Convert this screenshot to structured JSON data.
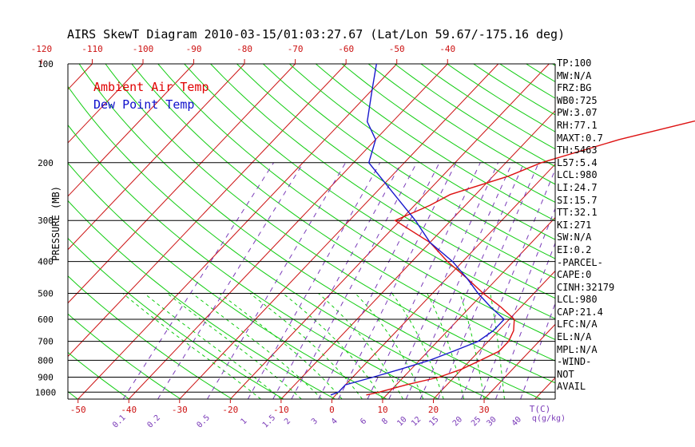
{
  "title": "AIRS SkewT Diagram 2010-03-15/01:03:27.67 (Lat/Lon 59.67/-175.16 deg)",
  "legend": {
    "ambient": "Ambient Air Temp",
    "dewpoint": "Dew Point Temp"
  },
  "colors": {
    "ambient": "#dd1111",
    "dewpoint": "#1818cc",
    "dry_adiabat": "#11cc11",
    "isotherm": "#cc1111",
    "mixing_ratio": "#7a3ab8",
    "moist_adiabat": "#11cc11"
  },
  "chart_data": {
    "type": "line",
    "ylabel": "PRESSURE (MB)",
    "y_scale": "log",
    "ylim": [
      1050,
      100
    ],
    "xlim_bottom": [
      -52,
      44
    ],
    "pressure_levels": [
      100,
      200,
      300,
      400,
      500,
      600,
      700,
      800,
      900,
      1000
    ],
    "top_temp_ticks": [
      "-120",
      "-110",
      "-100",
      "-90",
      "-80",
      "-70",
      "-60",
      "-50",
      "-40"
    ],
    "bottom_temp_ticks": [
      "-50",
      "-40",
      "-30",
      "-20",
      "-10",
      "0",
      "10",
      "20",
      "30"
    ],
    "bottom_temp_label": "T(C)",
    "mixing_ratio_ticks": [
      "0.1",
      "0.2",
      "0.5",
      "1",
      "1.5",
      "2",
      "3",
      "4",
      "6",
      "8",
      "10",
      "12",
      "15",
      "20",
      "25",
      "30",
      "40"
    ],
    "mixing_ratio_label": "q(g/kg)",
    "series": [
      {
        "name": "Ambient Air Temp",
        "points": [
          [
            1020,
            6
          ],
          [
            1000,
            8
          ],
          [
            950,
            12
          ],
          [
            900,
            17
          ],
          [
            850,
            20
          ],
          [
            800,
            22
          ],
          [
            750,
            24
          ],
          [
            700,
            24
          ],
          [
            650,
            23
          ],
          [
            600,
            21
          ],
          [
            550,
            16
          ],
          [
            500,
            10
          ],
          [
            450,
            4
          ],
          [
            400,
            -3
          ],
          [
            350,
            -10
          ],
          [
            300,
            -21
          ],
          [
            270,
            -17
          ],
          [
            250,
            -15
          ],
          [
            220,
            -7
          ],
          [
            200,
            -3
          ],
          [
            170,
            8
          ],
          [
            150,
            19
          ],
          [
            130,
            33
          ],
          [
            110,
            43
          ],
          [
            100,
            50
          ]
        ]
      },
      {
        "name": "Dew Point Temp",
        "points": [
          [
            1020,
            -1
          ],
          [
            1000,
            0
          ],
          [
            950,
            0
          ],
          [
            900,
            4
          ],
          [
            850,
            8
          ],
          [
            800,
            12
          ],
          [
            750,
            15
          ],
          [
            700,
            18
          ],
          [
            650,
            19
          ],
          [
            600,
            19
          ],
          [
            550,
            14
          ],
          [
            500,
            9
          ],
          [
            450,
            4
          ],
          [
            400,
            -2
          ],
          [
            350,
            -10
          ],
          [
            300,
            -17
          ],
          [
            250,
            -26
          ],
          [
            200,
            -37
          ],
          [
            170,
            -40
          ],
          [
            150,
            -45
          ],
          [
            120,
            -50
          ],
          [
            100,
            -54
          ]
        ]
      }
    ]
  },
  "indices": [
    "TP:100",
    "MW:N/A",
    "FRZ:BG",
    "WB0:725",
    "PW:3.07",
    "RH:77.1",
    "MAXT:0.7",
    "TH:5463",
    "L57:5.4",
    "LCL:980",
    "LI:24.7",
    "SI:15.7",
    "TT:32.1",
    "KI:271",
    "SW:N/A",
    "EI:0.2",
    "-PARCEL-",
    "CAPE:0",
    "CINH:32179",
    "LCL:980",
    "CAP:21.4",
    "LFC:N/A",
    "EL:N/A",
    "MPL:N/A",
    "-WIND-",
    "NOT",
    "AVAIL"
  ]
}
